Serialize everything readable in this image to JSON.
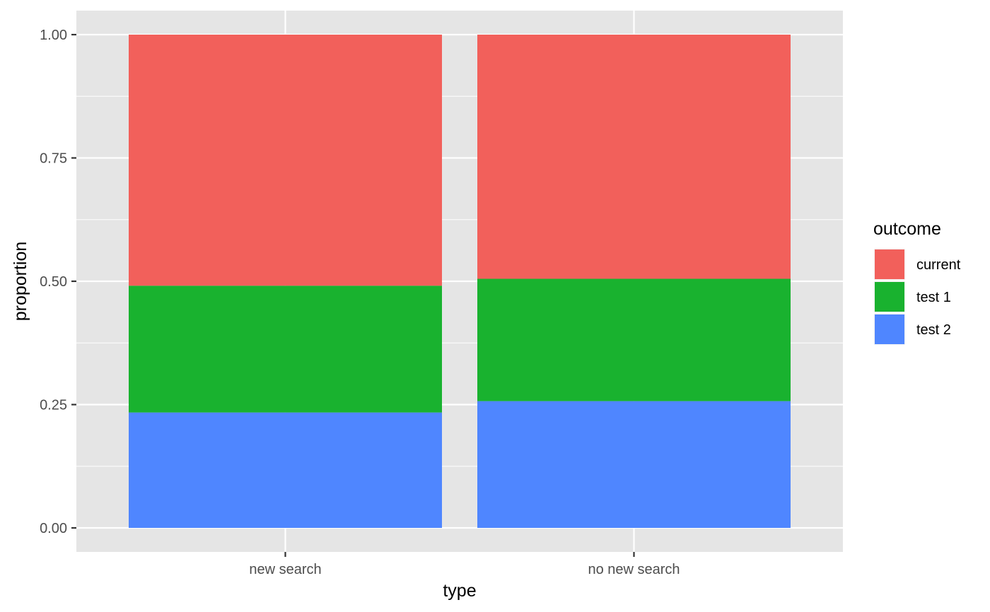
{
  "chart_data": {
    "type": "bar",
    "stacked": true,
    "title": "",
    "xlabel": "type",
    "ylabel": "proportion",
    "categories": [
      "new search",
      "no new search"
    ],
    "series": [
      {
        "name": "test 2",
        "values": [
          0.234,
          0.257
        ],
        "color": "#4F86FF"
      },
      {
        "name": "test 1",
        "values": [
          0.257,
          0.248
        ],
        "color": "#19B22F"
      },
      {
        "name": "current",
        "values": [
          0.509,
          0.495
        ],
        "color": "#F2605B"
      }
    ],
    "ylim": [
      0,
      1
    ],
    "yticks": [
      0,
      0.25,
      0.5,
      0.75,
      1
    ],
    "ytick_labels": [
      "0.00",
      "0.25",
      "0.50",
      "0.75",
      "1.00"
    ],
    "grid": true,
    "panel_background": "#E5E5E5",
    "grid_color": "#FFFFFF",
    "legend": {
      "title": "outcome",
      "position": "right",
      "entries": [
        {
          "label": "current",
          "color": "#F2605B"
        },
        {
          "label": "test 1",
          "color": "#19B22F"
        },
        {
          "label": "test 2",
          "color": "#4F86FF"
        }
      ]
    }
  }
}
